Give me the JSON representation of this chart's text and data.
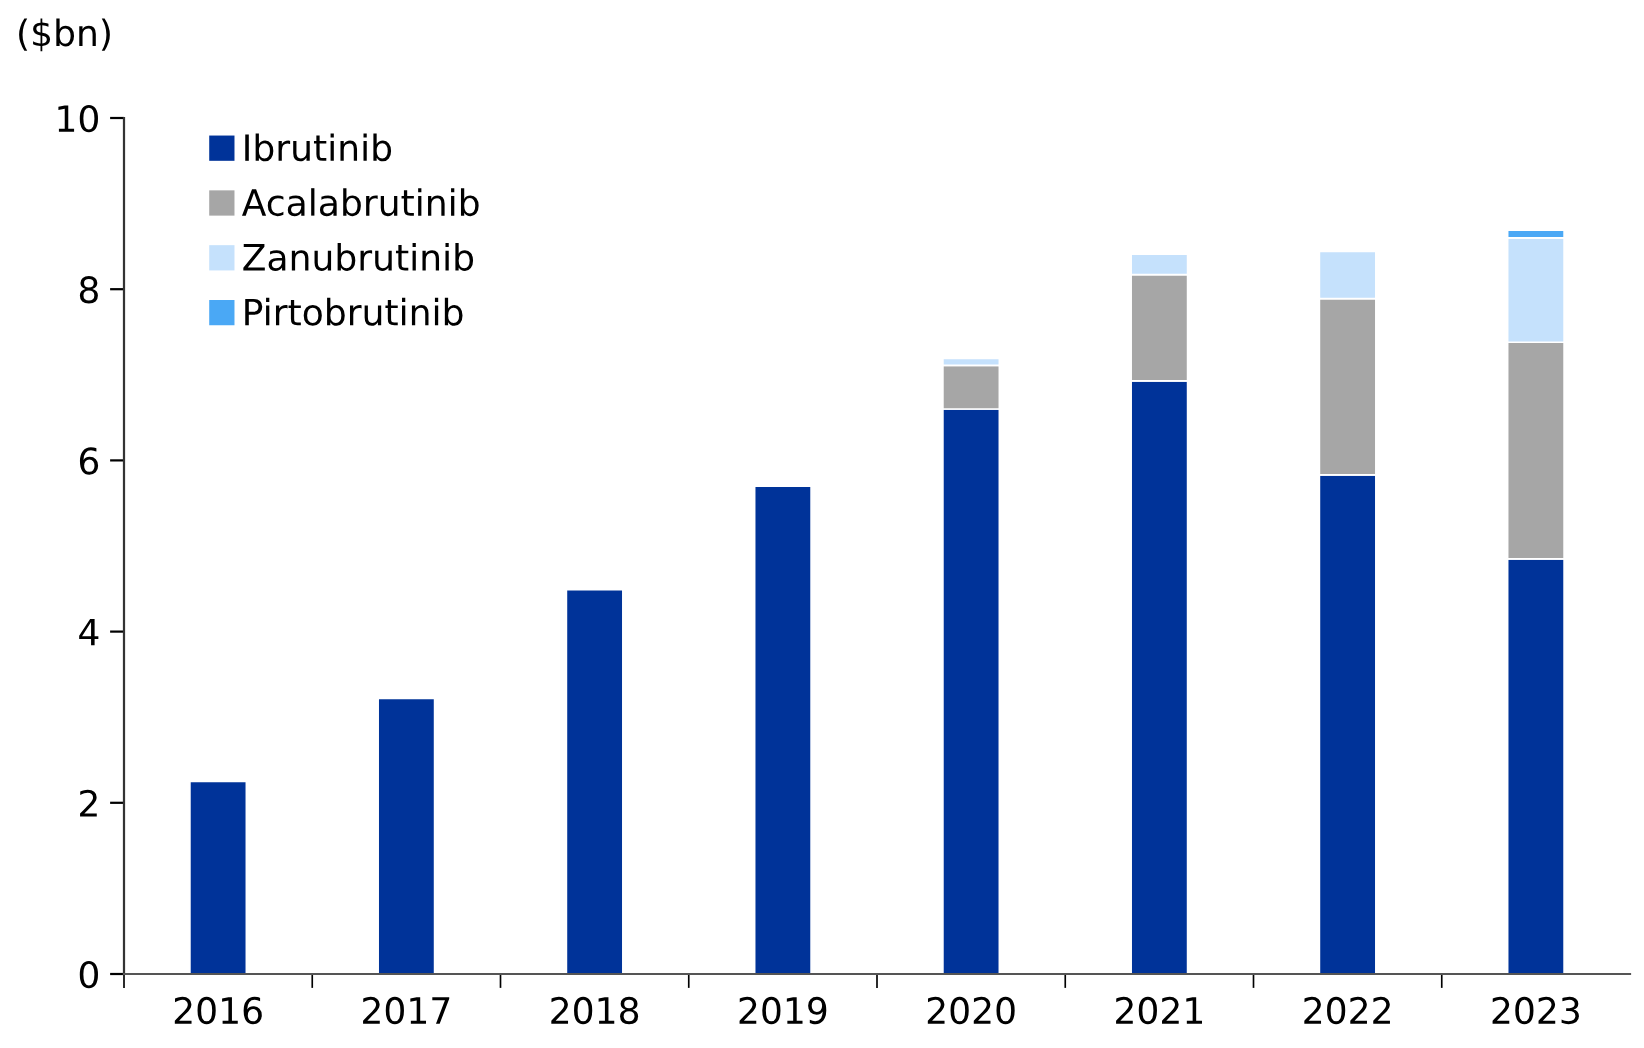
{
  "chart_data": {
    "type": "bar",
    "stacked": true,
    "ylabel": "($bn)",
    "categories": [
      "2016",
      "2017",
      "2018",
      "2019",
      "2020",
      "2021",
      "2022",
      "2023"
    ],
    "series": [
      {
        "name": "Ibrutinib",
        "color": "#003399",
        "values": [
          2.25,
          3.22,
          4.49,
          5.7,
          6.6,
          6.93,
          5.83,
          4.85
        ]
      },
      {
        "name": "Acalabrutinib",
        "color": "#a6a6a6",
        "values": [
          null,
          null,
          null,
          null,
          0.51,
          1.24,
          2.06,
          2.53
        ]
      },
      {
        "name": "Zanubrutinib",
        "color": "#c5e1fc",
        "values": [
          null,
          null,
          null,
          null,
          0.08,
          0.24,
          0.55,
          1.22
        ]
      },
      {
        "name": "Pirtobrutinib",
        "color": "#4aa8f5",
        "values": [
          null,
          null,
          null,
          null,
          null,
          null,
          null,
          0.09
        ]
      }
    ],
    "ylim": [
      0,
      10
    ],
    "yticks": [
      0,
      2,
      4,
      6,
      8,
      10
    ],
    "grid": false,
    "legend": "top left"
  }
}
